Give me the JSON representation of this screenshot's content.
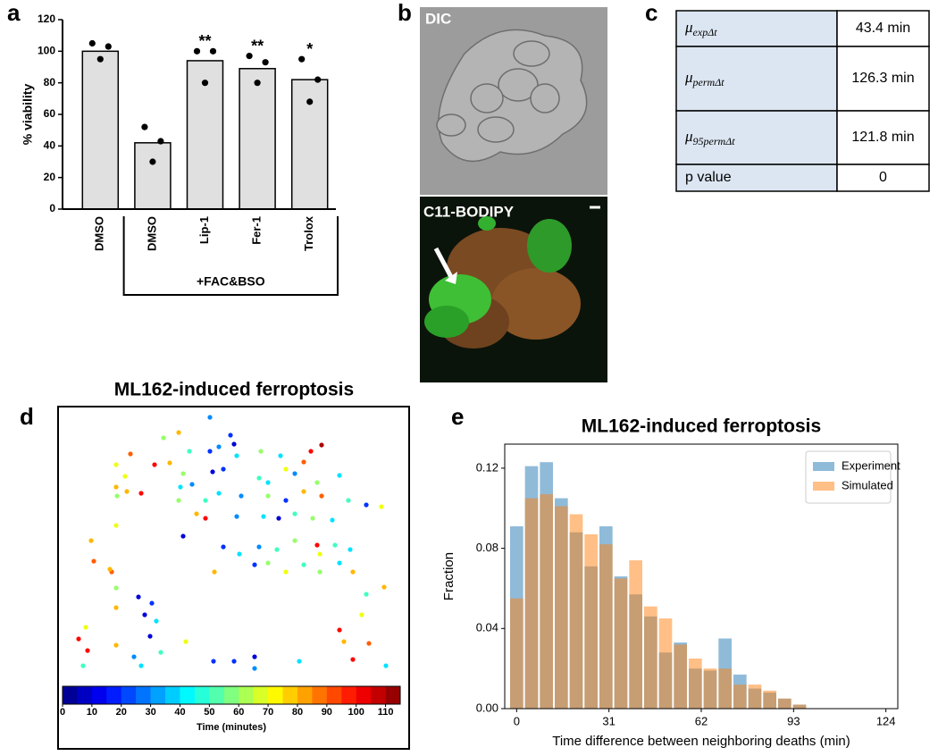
{
  "panel_labels": [
    "a",
    "b",
    "c",
    "d",
    "e"
  ],
  "images": [
    {
      "label": "DIC"
    },
    {
      "label": "C11-BODIPY"
    }
  ],
  "table": {
    "rows": [
      {
        "symbol": "μ",
        "sub": "expΔt",
        "value": "43.4 min"
      },
      {
        "symbol": "μ",
        "sub": "permΔt",
        "value": "126.3 min"
      },
      {
        "symbol": "μ",
        "sub": "95permΔt",
        "value": "121.8 min"
      },
      {
        "label": "p value",
        "value": 0
      }
    ]
  },
  "chart_data": [
    {
      "type": "bar",
      "categories": [
        "DMSO",
        "DMSO",
        "Lip-1",
        "Fer-1",
        "Trolox"
      ],
      "values": [
        100,
        42,
        94,
        89,
        82
      ],
      "points": [
        [
          105,
          103,
          95
        ],
        [
          52,
          43,
          30
        ],
        [
          100,
          100,
          80
        ],
        [
          97,
          93,
          80
        ],
        [
          95,
          82,
          68
        ]
      ],
      "annotations": [
        null,
        null,
        "**",
        "**",
        "*"
      ],
      "group_label": "+FAC&BSO",
      "ylabel": "% viability",
      "ylim": [
        0,
        120
      ],
      "yticks": [
        0,
        20,
        40,
        60,
        80,
        100,
        120
      ],
      "color": "#e0e0e0",
      "point_color": "#000000"
    },
    {
      "type": "scatter",
      "title": "ML162-induced ferroptosis",
      "x": [
        170,
        193,
        197,
        135,
        118,
        81,
        108,
        125,
        147,
        170,
        180,
        200,
        227,
        249,
        283,
        295,
        275,
        255,
        75,
        65,
        66,
        93,
        137,
        150,
        173,
        185,
        225,
        235,
        265,
        290,
        315,
        135,
        165,
        180,
        205,
        235,
        255,
        275,
        295,
        325,
        362,
        345,
        155,
        165,
        200,
        230,
        247,
        265,
        285,
        307,
        140,
        65,
        37,
        40,
        185,
        203,
        225,
        245,
        265,
        290,
        293,
        310,
        327,
        175,
        220,
        235,
        255,
        275,
        293,
        315,
        330,
        365,
        345,
        340,
        60,
        65,
        90,
        105,
        97,
        110,
        65,
        31,
        103,
        23,
        33,
        28,
        65,
        85,
        93,
        143,
        174,
        197,
        220,
        220,
        270,
        315,
        320,
        330,
        348,
        367,
        65,
        77,
        58,
        115,
        140
      ],
      "y": [
        293,
        273,
        263,
        276,
        270,
        252,
        240,
        242,
        255,
        255,
        260,
        250,
        255,
        250,
        255,
        262,
        243,
        235,
        227,
        215,
        205,
        208,
        215,
        218,
        232,
        235,
        225,
        220,
        230,
        220,
        228,
        200,
        200,
        208,
        205,
        205,
        200,
        210,
        205,
        200,
        193,
        195,
        185,
        180,
        182,
        182,
        180,
        185,
        180,
        178,
        160,
        172,
        155,
        132,
        148,
        140,
        148,
        145,
        155,
        150,
        140,
        150,
        145,
        120,
        128,
        130,
        120,
        128,
        120,
        130,
        120,
        103,
        95,
        72,
        120,
        102,
        92,
        85,
        72,
        65,
        80,
        58,
        48,
        45,
        32,
        15,
        38,
        25,
        15,
        42,
        20,
        20,
        25,
        12,
        20,
        55,
        42,
        22,
        40,
        15,
        240,
        210,
        123,
        30,
        230
      ],
      "c": [
        30,
        20,
        10,
        80,
        60,
        90,
        100,
        80,
        50,
        20,
        30,
        40,
        60,
        40,
        100,
        110,
        90,
        70,
        70,
        80,
        60,
        100,
        40,
        30,
        10,
        20,
        50,
        40,
        30,
        60,
        40,
        60,
        50,
        40,
        30,
        60,
        20,
        80,
        90,
        50,
        70,
        20,
        80,
        100,
        30,
        40,
        10,
        50,
        60,
        40,
        10,
        70,
        80,
        90,
        20,
        40,
        30,
        50,
        60,
        100,
        70,
        50,
        40,
        80,
        20,
        60,
        70,
        50,
        60,
        40,
        80,
        80,
        50,
        70,
        90,
        60,
        10,
        20,
        10,
        40,
        80,
        70,
        10,
        100,
        100,
        50,
        80,
        30,
        40,
        70,
        20,
        20,
        10,
        30,
        40,
        100,
        80,
        100,
        90,
        40,
        70,
        80,
        80,
        50,
        60
      ],
      "xlim": [
        0,
        393
      ],
      "ylim": [
        0,
        300
      ],
      "colormap": "jet",
      "clim": [
        0,
        115
      ],
      "cticks": [
        0,
        10,
        20,
        30,
        40,
        50,
        60,
        70,
        80,
        90,
        100,
        110
      ],
      "clabel": "Time (minutes)"
    },
    {
      "type": "histogram",
      "title": "ML162-induced ferroptosis",
      "xlabel": "Time difference between neighboring deaths (min)",
      "ylabel": "Fraction",
      "bins": [
        -2.5,
        2.5,
        7.5,
        12.5,
        17.5,
        22.5,
        27.5,
        32.5,
        37.5,
        42.5,
        47.5,
        52.5,
        57.5,
        62.5,
        67.5,
        72.5,
        77.5,
        82.5,
        87.5,
        92.5,
        97.5
      ],
      "series": [
        {
          "name": "Experiment",
          "color": "#1f77b4",
          "values": [
            0.091,
            0.121,
            0.123,
            0.105,
            0.088,
            0.071,
            0.091,
            0.066,
            0.057,
            0.046,
            0.028,
            0.033,
            0.02,
            0.019,
            0.035,
            0.017,
            0.01,
            0.008,
            0.005,
            0.002
          ]
        },
        {
          "name": "Simulated",
          "color": "#ff7f0e",
          "values": [
            0.055,
            0.105,
            0.107,
            0.101,
            0.097,
            0.087,
            0.082,
            0.065,
            0.074,
            0.051,
            0.045,
            0.032,
            0.025,
            0.02,
            0.02,
            0.012,
            0.012,
            0.009,
            0.005,
            0.002
          ]
        }
      ],
      "xlim": [
        -4,
        128
      ],
      "ylim": [
        0,
        0.132
      ],
      "xticks": [
        0,
        31,
        62,
        93,
        124
      ],
      "yticks": [
        {
          "value": 0,
          "label": "0.00"
        },
        0.04,
        0.08,
        0.12
      ],
      "legend": "upper right",
      "alpha": 0.5
    }
  ]
}
